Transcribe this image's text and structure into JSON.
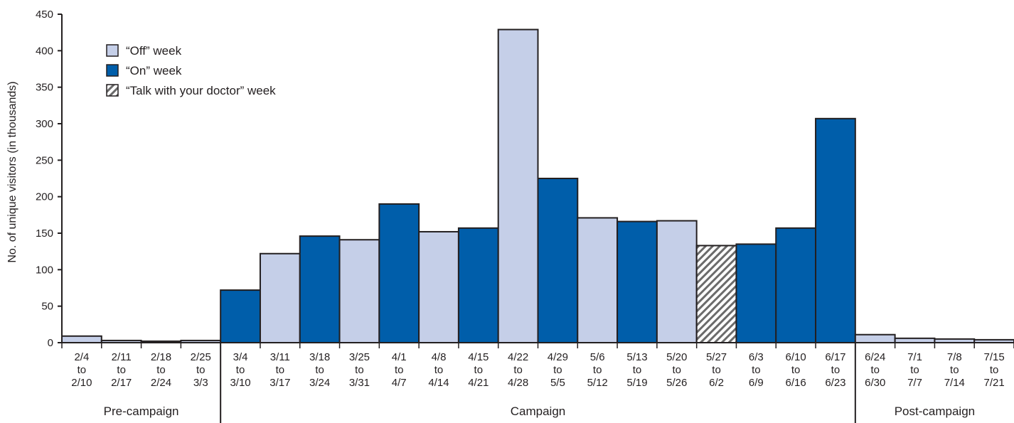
{
  "chart_data": {
    "type": "bar",
    "ylabel": "No. of unique visitors (in thousands)",
    "ylim": [
      0,
      450
    ],
    "yticks": [
      0,
      50,
      100,
      150,
      200,
      250,
      300,
      350,
      400,
      450
    ],
    "grid": false,
    "legend_position": "top-left",
    "categories": [
      [
        "2/4",
        "to",
        "2/10"
      ],
      [
        "2/11",
        "to",
        "2/17"
      ],
      [
        "2/18",
        "to",
        "2/24"
      ],
      [
        "2/25",
        "to",
        "3/3"
      ],
      [
        "3/4",
        "to",
        "3/10"
      ],
      [
        "3/11",
        "to",
        "3/17"
      ],
      [
        "3/18",
        "to",
        "3/24"
      ],
      [
        "3/25",
        "to",
        "3/31"
      ],
      [
        "4/1",
        "to",
        "4/7"
      ],
      [
        "4/8",
        "to",
        "4/14"
      ],
      [
        "4/15",
        "to",
        "4/21"
      ],
      [
        "4/22",
        "to",
        "4/28"
      ],
      [
        "4/29",
        "to",
        "5/5"
      ],
      [
        "5/6",
        "to",
        "5/12"
      ],
      [
        "5/13",
        "to",
        "5/19"
      ],
      [
        "5/20",
        "to",
        "5/26"
      ],
      [
        "5/27",
        "to",
        "6/2"
      ],
      [
        "6/3",
        "to",
        "6/9"
      ],
      [
        "6/10",
        "to",
        "6/16"
      ],
      [
        "6/17",
        "to",
        "6/23"
      ],
      [
        "6/24",
        "to",
        "6/30"
      ],
      [
        "7/1",
        "to",
        "7/7"
      ],
      [
        "7/8",
        "to",
        "7/14"
      ],
      [
        "7/15",
        "to",
        "7/21"
      ]
    ],
    "values": [
      9,
      3,
      2,
      3,
      72,
      122,
      146,
      141,
      190,
      152,
      157,
      429,
      225,
      171,
      166,
      167,
      133,
      135,
      157,
      307,
      11,
      6,
      5,
      4
    ],
    "week_types": [
      "off",
      "off",
      "off",
      "off",
      "on",
      "off",
      "on",
      "off",
      "on",
      "off",
      "on",
      "off",
      "on",
      "off",
      "on",
      "off",
      "talk",
      "on",
      "on",
      "on",
      "off",
      "off",
      "off",
      "off"
    ],
    "legend": [
      {
        "key": "off",
        "label": "“Off” week",
        "color": "#c5cfe8"
      },
      {
        "key": "on",
        "label": "“On” week",
        "color": "#005eaa"
      },
      {
        "key": "talk",
        "label": "“Talk with your doctor” week",
        "color": "hatched"
      }
    ],
    "periods": [
      {
        "label": "Pre-campaign",
        "start": 0,
        "end": 3
      },
      {
        "label": "Campaign",
        "start": 4,
        "end": 19
      },
      {
        "label": "Post-campaign",
        "start": 20,
        "end": 23
      }
    ],
    "colors": {
      "off": "#c5cfe8",
      "on": "#005eaa",
      "outline": "#231f20"
    }
  }
}
